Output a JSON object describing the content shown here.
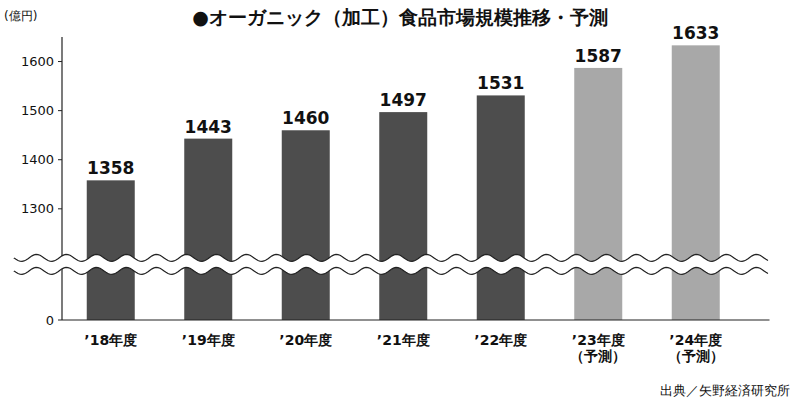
{
  "chart_data": {
    "type": "bar",
    "title": "●オーガニック（加工）食品市場規模推移・予測",
    "ylabel": "(億円)",
    "source": "出典／矢野経済研究所",
    "categories": [
      "’18年度",
      "’19年度",
      "’20年度",
      "’21年度",
      "’22年度",
      "’23年度\n（予測）",
      "’24年度\n（予測）"
    ],
    "values": [
      1358,
      1443,
      1460,
      1497,
      1531,
      1587,
      1633
    ],
    "colors": [
      "#4d4d4d",
      "#4d4d4d",
      "#4d4d4d",
      "#4d4d4d",
      "#4d4d4d",
      "#a8a8a8",
      "#a8a8a8"
    ],
    "ylim": [
      0,
      1650
    ],
    "ybreak": [
      100,
      1200
    ],
    "yticks": [
      0,
      1300,
      1400,
      1500,
      1600
    ],
    "grid": false,
    "data_labels": true
  }
}
